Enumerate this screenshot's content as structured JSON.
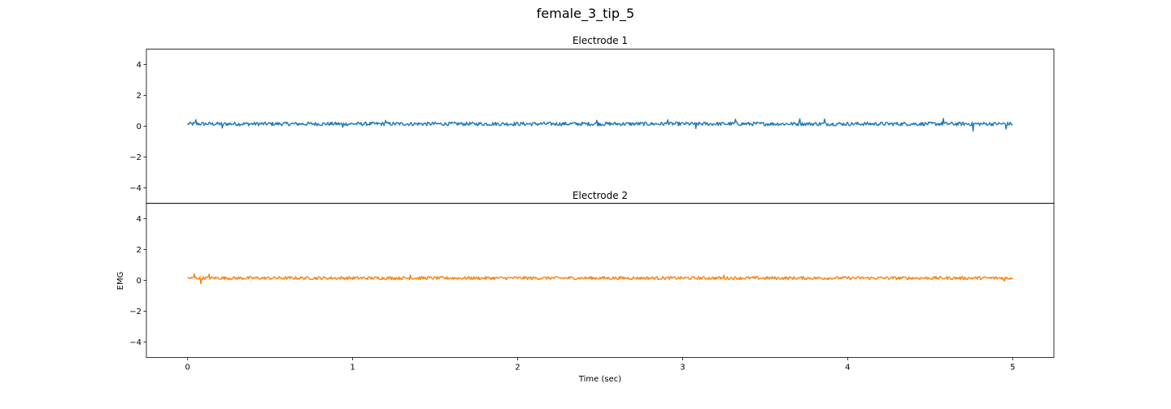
{
  "chart_data": {
    "type": "line",
    "title": "female_3_tip_5",
    "xlabel": "Time (sec)",
    "ylabel": "EMG",
    "xlim": [
      -0.25,
      5.25
    ],
    "xticks": [
      0,
      1,
      2,
      3,
      4,
      5
    ],
    "grid": false,
    "subplots": [
      {
        "title": "Electrode 1",
        "ylim": [
          -5,
          5
        ],
        "yticks": [
          -4,
          -2,
          0,
          2,
          4
        ],
        "ytick_labels": [
          "−4",
          "−2",
          "0",
          "2",
          "4"
        ],
        "series": [
          {
            "color": "#1f77b4",
            "x_range": [
              0,
              5
            ],
            "mean": 0.15,
            "amplitude": 0.12,
            "spikes": [
              {
                "x": 0.05,
                "y": 0.42
              },
              {
                "x": 0.21,
                "y": -0.12
              },
              {
                "x": 0.94,
                "y": -0.08
              },
              {
                "x": 1.2,
                "y": 0.38
              },
              {
                "x": 2.48,
                "y": 0.38
              },
              {
                "x": 2.91,
                "y": 0.42
              },
              {
                "x": 3.08,
                "y": -0.15
              },
              {
                "x": 3.32,
                "y": 0.45
              },
              {
                "x": 3.71,
                "y": 0.48
              },
              {
                "x": 3.86,
                "y": 0.46
              },
              {
                "x": 4.58,
                "y": 0.5
              },
              {
                "x": 4.76,
                "y": -0.32
              },
              {
                "x": 4.96,
                "y": -0.18
              }
            ]
          }
        ]
      },
      {
        "title": "Electrode 2",
        "ylim": [
          -5,
          5
        ],
        "yticks": [
          -4,
          -2,
          0,
          2,
          4
        ],
        "ytick_labels": [
          "−4",
          "−2",
          "0",
          "2",
          "4"
        ],
        "series": [
          {
            "color": "#ff7f0e",
            "x_range": [
              0,
              5
            ],
            "mean": 0.15,
            "amplitude": 0.1,
            "spikes": [
              {
                "x": 0.04,
                "y": 0.42
              },
              {
                "x": 0.08,
                "y": -0.22
              },
              {
                "x": 0.13,
                "y": 0.4
              },
              {
                "x": 1.35,
                "y": 0.35
              },
              {
                "x": 3.25,
                "y": 0.34
              },
              {
                "x": 4.95,
                "y": -0.05
              }
            ]
          }
        ]
      }
    ]
  }
}
